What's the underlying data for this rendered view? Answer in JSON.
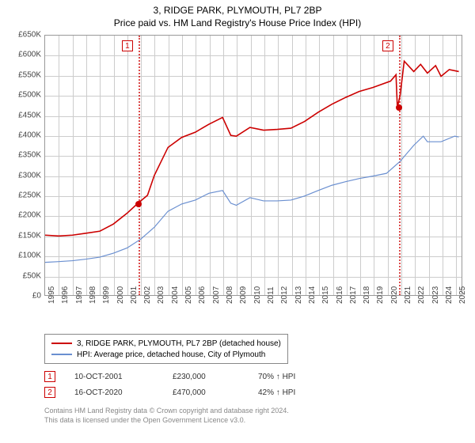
{
  "titles": {
    "line1": "3, RIDGE PARK, PLYMOUTH, PL7 2BP",
    "line2": "Price paid vs. HM Land Registry's House Price Index (HPI)"
  },
  "chart": {
    "type": "line",
    "background_color": "#ffffff",
    "border_color": "#999999",
    "grid_color": "#cccccc",
    "y": {
      "min": 0,
      "max": 650,
      "ticks": [
        0,
        50,
        100,
        150,
        200,
        250,
        300,
        350,
        400,
        450,
        500,
        550,
        600,
        650
      ],
      "labels": [
        "£0",
        "£50K",
        "£100K",
        "£150K",
        "£200K",
        "£250K",
        "£300K",
        "£350K",
        "£400K",
        "£450K",
        "£500K",
        "£550K",
        "£600K",
        "£650K"
      ],
      "label_fontsize": 10
    },
    "x": {
      "min": 1995,
      "max": 2025.5,
      "ticks": [
        1995,
        1996,
        1997,
        1998,
        1999,
        2000,
        2001,
        2002,
        2003,
        2004,
        2005,
        2006,
        2007,
        2008,
        2009,
        2010,
        2011,
        2012,
        2013,
        2014,
        2015,
        2016,
        2017,
        2018,
        2019,
        2020,
        2021,
        2022,
        2023,
        2024,
        2025
      ],
      "label_fontsize": 10
    },
    "series": [
      {
        "name": "property",
        "label": "3, RIDGE PARK, PLYMOUTH, PL7 2BP (detached house)",
        "color": "#cc0000",
        "width": 1.6,
        "points": [
          [
            1995,
            150
          ],
          [
            1996,
            148
          ],
          [
            1997,
            150
          ],
          [
            1998,
            155
          ],
          [
            1999,
            160
          ],
          [
            2000,
            178
          ],
          [
            2001,
            205
          ],
          [
            2001.8,
            230
          ],
          [
            2002.5,
            250
          ],
          [
            2003,
            300
          ],
          [
            2004,
            370
          ],
          [
            2005,
            395
          ],
          [
            2006,
            408
          ],
          [
            2007,
            428
          ],
          [
            2008,
            445
          ],
          [
            2008.6,
            400
          ],
          [
            2009,
            398
          ],
          [
            2010,
            420
          ],
          [
            2011,
            413
          ],
          [
            2012,
            415
          ],
          [
            2013,
            418
          ],
          [
            2014,
            435
          ],
          [
            2015,
            458
          ],
          [
            2016,
            478
          ],
          [
            2017,
            495
          ],
          [
            2018,
            510
          ],
          [
            2019,
            520
          ],
          [
            2020.3,
            536
          ],
          [
            2020.7,
            552
          ],
          [
            2020.8,
            470
          ],
          [
            2021,
            500
          ],
          [
            2021.3,
            586
          ],
          [
            2022,
            560
          ],
          [
            2022.5,
            578
          ],
          [
            2023,
            556
          ],
          [
            2023.6,
            575
          ],
          [
            2024,
            548
          ],
          [
            2024.6,
            565
          ],
          [
            2025.3,
            560
          ]
        ]
      },
      {
        "name": "hpi",
        "label": "HPI: Average price, detached house, City of Plymouth",
        "color": "#6a8fd0",
        "width": 1.2,
        "points": [
          [
            1995,
            82
          ],
          [
            1996,
            84
          ],
          [
            1997,
            86
          ],
          [
            1998,
            90
          ],
          [
            1999,
            95
          ],
          [
            2000,
            105
          ],
          [
            2001,
            118
          ],
          [
            2002,
            140
          ],
          [
            2003,
            170
          ],
          [
            2004,
            210
          ],
          [
            2005,
            228
          ],
          [
            2006,
            238
          ],
          [
            2007,
            255
          ],
          [
            2008,
            262
          ],
          [
            2008.6,
            230
          ],
          [
            2009,
            225
          ],
          [
            2010,
            244
          ],
          [
            2011,
            236
          ],
          [
            2012,
            236
          ],
          [
            2013,
            238
          ],
          [
            2014,
            248
          ],
          [
            2015,
            262
          ],
          [
            2016,
            275
          ],
          [
            2017,
            284
          ],
          [
            2018,
            292
          ],
          [
            2019,
            298
          ],
          [
            2020,
            305
          ],
          [
            2021,
            335
          ],
          [
            2022,
            375
          ],
          [
            2022.7,
            398
          ],
          [
            2023,
            384
          ],
          [
            2024,
            384
          ],
          [
            2025,
            398
          ],
          [
            2025.3,
            396
          ]
        ]
      }
    ],
    "markers": [
      {
        "num": "1",
        "year": 2001.8,
        "price": 230,
        "box_x": 2000.6,
        "box_top": true
      },
      {
        "num": "2",
        "year": 2020.8,
        "price": 470,
        "box_x": 2019.6,
        "box_top": true
      }
    ]
  },
  "legend": {
    "border_color": "#888888",
    "fontsize": 10,
    "items": [
      {
        "color": "#cc0000",
        "text": "3, RIDGE PARK, PLYMOUTH, PL7 2BP (detached house)"
      },
      {
        "color": "#6a8fd0",
        "text": "HPI: Average price, detached house, City of Plymouth"
      }
    ]
  },
  "transactions": [
    {
      "num": "1",
      "date": "10-OCT-2001",
      "price": "£230,000",
      "pct": "70% ↑ HPI"
    },
    {
      "num": "2",
      "date": "16-OCT-2020",
      "price": "£470,000",
      "pct": "42% ↑ HPI"
    }
  ],
  "footnote": {
    "line1": "Contains HM Land Registry data © Crown copyright and database right 2024.",
    "line2": "This data is licensed under the Open Government Licence v3.0."
  },
  "colors": {
    "marker_red": "#cc0000",
    "text_gray": "#888888"
  }
}
